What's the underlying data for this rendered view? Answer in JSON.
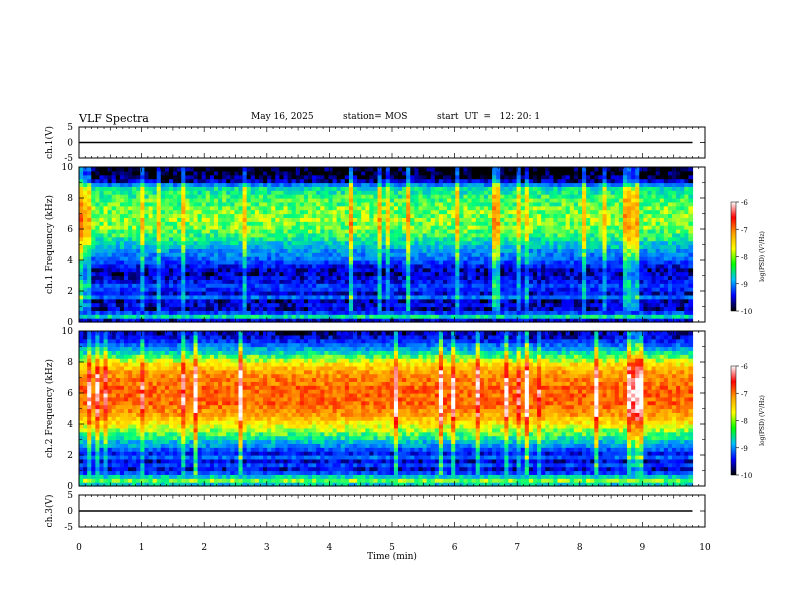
{
  "header": {
    "title": "VLF Spectra",
    "date": "May 16, 2025",
    "station": "station= MOS",
    "start": "start  UT  =   12: 20: 1"
  },
  "colorbar": {
    "label": "log(PSD) (V²/Hz)",
    "ticks": [
      "-6",
      "-7",
      "-8",
      "-9",
      "-10"
    ],
    "colors": [
      "#ffffff",
      "#ff0000",
      "#ffa000",
      "#ffff00",
      "#00ff00",
      "#00c0ff",
      "#0000ff",
      "#000000"
    ]
  },
  "chart_data": [
    {
      "type": "line",
      "title": "VLF Spectra",
      "ylabel": "ch.1(V)",
      "xlim": [
        0,
        10
      ],
      "ylim": [
        -5,
        5
      ],
      "yticks": [
        "5",
        "0",
        "-5"
      ],
      "series": [
        {
          "x": [
            0,
            9.8
          ],
          "values": [
            0,
            0
          ]
        }
      ]
    },
    {
      "type": "heatmap",
      "ylabel": "ch.1 Frequency (kHz)",
      "xlim": [
        0,
        10
      ],
      "ylim": [
        0,
        10
      ],
      "yticks": [
        "0",
        "2",
        "4",
        "6",
        "8",
        "10"
      ],
      "data_end_min": 9.8,
      "colorbar_range": [
        -10,
        -6
      ],
      "profile_khz": [
        0.25,
        0.5,
        0.75,
        1,
        1.25,
        1.5,
        1.75,
        2,
        2.25,
        2.5,
        2.75,
        3,
        3.25,
        3.5,
        3.75,
        4,
        4.25,
        4.5,
        4.75,
        5,
        5.25,
        5.5,
        5.75,
        6,
        6.25,
        6.5,
        6.75,
        7,
        7.25,
        7.5,
        7.75,
        8,
        8.25,
        8.5,
        8.75,
        9,
        9.25,
        9.5,
        9.75,
        10
      ],
      "profile_logpsd": [
        -9.6,
        -8.5,
        -9.3,
        -9.7,
        -9.6,
        -9.7,
        -9.1,
        -9.6,
        -9.4,
        -9.3,
        -9.5,
        -9.6,
        -9.7,
        -9.7,
        -9.5,
        -9.3,
        -9.1,
        -9.0,
        -8.9,
        -8.7,
        -8.6,
        -8.4,
        -8.3,
        -8.2,
        -8.1,
        -8.1,
        -8.0,
        -8.1,
        -8.1,
        -8.1,
        -8.2,
        -8.2,
        -8.3,
        -8.4,
        -8.5,
        -9.0,
        -9.7,
        -9.9,
        -10,
        -10
      ]
    },
    {
      "type": "heatmap",
      "ylabel": "ch.2 Frequency (kHz)",
      "xlim": [
        0,
        10
      ],
      "ylim": [
        0,
        10
      ],
      "yticks": [
        "0",
        "2",
        "4",
        "6",
        "8",
        "10"
      ],
      "data_end_min": 9.8,
      "colorbar_range": [
        -10,
        -6
      ],
      "profile_khz": [
        0.25,
        0.5,
        0.75,
        1,
        1.25,
        1.5,
        1.75,
        2,
        2.25,
        2.5,
        2.75,
        3,
        3.25,
        3.5,
        3.75,
        4,
        4.25,
        4.5,
        4.75,
        5,
        5.25,
        5.5,
        5.75,
        6,
        6.25,
        6.5,
        6.75,
        7,
        7.25,
        7.5,
        7.75,
        8,
        8.25,
        8.5,
        8.75,
        9,
        9.25,
        9.5,
        9.75,
        10
      ],
      "profile_logpsd": [
        -8.6,
        -8.1,
        -8.6,
        -9.3,
        -9.6,
        -9.3,
        -9.6,
        -9.1,
        -9.5,
        -9.2,
        -8.9,
        -8.7,
        -8.4,
        -8.2,
        -8.0,
        -7.8,
        -7.6,
        -7.4,
        -7.2,
        -7.1,
        -7.0,
        -6.9,
        -6.9,
        -6.9,
        -6.9,
        -6.9,
        -7.0,
        -7.0,
        -7.1,
        -7.2,
        -7.4,
        -7.6,
        -7.9,
        -8.2,
        -8.5,
        -8.8,
        -9.1,
        -9.4,
        -9.6,
        -9.7
      ]
    },
    {
      "type": "line",
      "ylabel": "ch.3(V)",
      "xlabel": "Time  (min)",
      "xlim": [
        0,
        10
      ],
      "ylim": [
        -5,
        5
      ],
      "xticks": [
        "0",
        "1",
        "2",
        "3",
        "4",
        "5",
        "6",
        "7",
        "8",
        "9",
        "10"
      ],
      "yticks": [
        "5",
        "0",
        "-5"
      ],
      "series": [
        {
          "x": [
            0,
            9.8
          ],
          "values": [
            0,
            0
          ]
        }
      ]
    }
  ]
}
